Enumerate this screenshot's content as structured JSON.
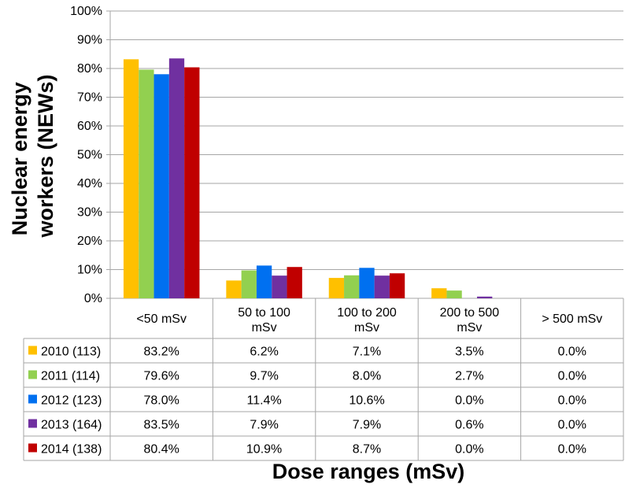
{
  "chart_data": {
    "type": "bar",
    "title": "",
    "xlabel": "Dose ranges (mSv)",
    "ylabel_lines": [
      "Nuclear energy",
      "workers (NEWs)"
    ],
    "ylim": [
      0,
      100
    ],
    "y_ticks": [
      "0%",
      "10%",
      "20%",
      "30%",
      "40%",
      "50%",
      "60%",
      "70%",
      "80%",
      "90%",
      "100%"
    ],
    "category_lines": [
      [
        "<50 mSv"
      ],
      [
        "50 to 100",
        "mSv"
      ],
      [
        "100 to 200",
        "mSv"
      ],
      [
        "200 to 500",
        "mSv"
      ],
      [
        "> 500 mSv"
      ]
    ],
    "grid": true,
    "legend": "data table",
    "series": [
      {
        "name": "2010 (113)",
        "color": "#FFC000",
        "values": [
          83.2,
          6.2,
          7.1,
          3.5,
          0.0
        ],
        "labels": [
          "83.2%",
          "6.2%",
          "7.1%",
          "3.5%",
          "0.0%"
        ]
      },
      {
        "name": "2011 (114)",
        "color": "#92D050",
        "values": [
          79.6,
          9.7,
          8.0,
          2.7,
          0.0
        ],
        "labels": [
          "79.6%",
          "9.7%",
          "8.0%",
          "2.7%",
          "0.0%"
        ]
      },
      {
        "name": "2012 (123)",
        "color": "#0070F0",
        "values": [
          78.0,
          11.4,
          10.6,
          0.0,
          0.0
        ],
        "labels": [
          "78.0%",
          "11.4%",
          "10.6%",
          "0.0%",
          "0.0%"
        ]
      },
      {
        "name": "2013 (164)",
        "color": "#7030A0",
        "values": [
          83.5,
          7.9,
          7.9,
          0.6,
          0.0
        ],
        "labels": [
          "83.5%",
          "7.9%",
          "7.9%",
          "0.6%",
          "0.0%"
        ]
      },
      {
        "name": "2014 (138)",
        "color": "#C00000",
        "values": [
          80.4,
          10.9,
          8.7,
          0.0,
          0.0
        ],
        "labels": [
          "80.4%",
          "10.9%",
          "8.7%",
          "0.0%",
          "0.0%"
        ]
      }
    ]
  }
}
